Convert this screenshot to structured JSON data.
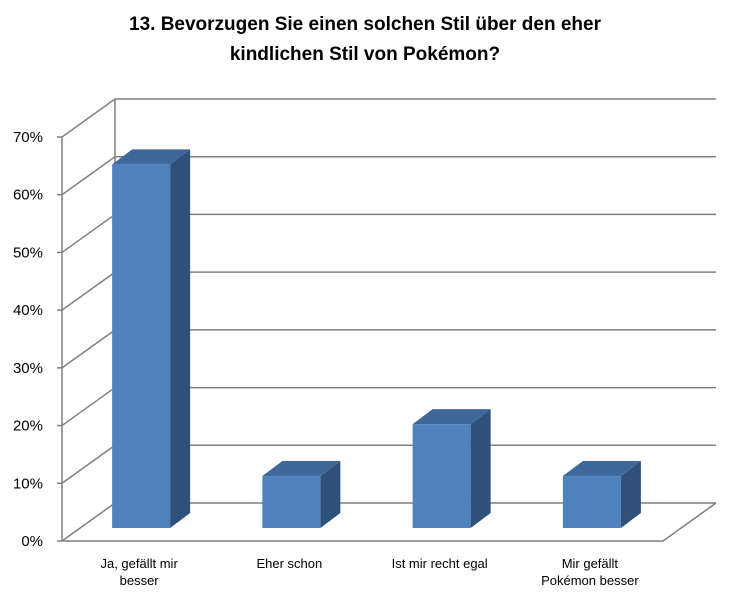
{
  "chart_data": {
    "type": "bar",
    "style": "3d-column",
    "title_lines": [
      "13. Bevorzugen Sie einen solchen Stil über den eher",
      "kindlichen Stil von Pokémon?"
    ],
    "categories": [
      [
        "Ja, gefällt mir",
        "besser"
      ],
      [
        "Eher schon"
      ],
      [
        "Ist mir recht egal"
      ],
      [
        "Mir gefällt",
        "Pokémon besser"
      ]
    ],
    "values": [
      63,
      9,
      18,
      9
    ],
    "ylim": [
      0,
      70
    ],
    "y_ticks": [
      "0%",
      "10%",
      "20%",
      "30%",
      "40%",
      "50%",
      "60%",
      "70%"
    ],
    "grid": true,
    "legend": false,
    "colors": {
      "bar_front": "#4F81BD",
      "bar_side": "#2F507A",
      "bar_top": "#3F689A",
      "grid": "#7F7F7F",
      "axis": "#808080"
    }
  }
}
